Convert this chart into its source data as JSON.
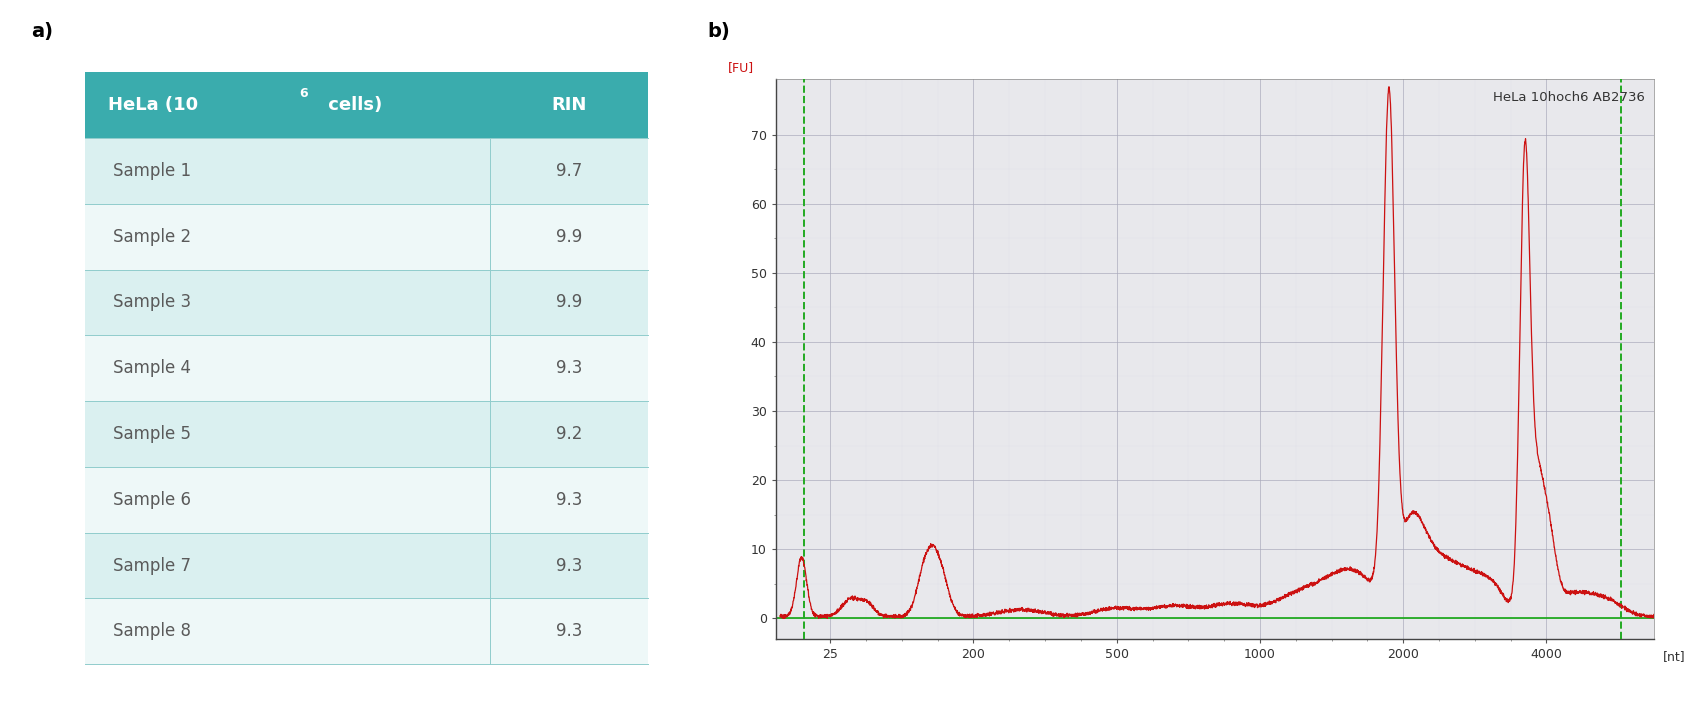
{
  "table_header_col1": "HeLa (10",
  "table_header_sup": "6",
  "table_header_col1b": " cells)",
  "table_header_col2": "RIN",
  "table_rows": [
    [
      "Sample 1",
      "9.7"
    ],
    [
      "Sample 2",
      "9.9"
    ],
    [
      "Sample 3",
      "9.9"
    ],
    [
      "Sample 4",
      "9.3"
    ],
    [
      "Sample 5",
      "9.2"
    ],
    [
      "Sample 6",
      "9.3"
    ],
    [
      "Sample 7",
      "9.3"
    ],
    [
      "Sample 8",
      "9.3"
    ]
  ],
  "header_bg": "#3aacad",
  "header_text_color": "#ffffff",
  "row_bg_light": "#daf0f0",
  "row_bg_lighter": "#eef8f8",
  "row_text_color": "#5a5a5a",
  "divider_color": "#90cccc",
  "panel_a_label": "a)",
  "panel_b_label": "b)",
  "chart_title": "HeLa 10hoch6 AB2736",
  "chart_ylabel": "[FU]",
  "chart_xlabel": "[nt]",
  "chart_yticks": [
    0,
    10,
    20,
    30,
    40,
    50,
    60,
    70
  ],
  "chart_xtick_labels": [
    "25",
    "200",
    "500",
    "1000",
    "2000",
    "4000"
  ],
  "chart_xtick_pos": [
    0,
    1,
    2,
    3,
    4,
    5
  ],
  "chart_bg": "#e8e8ec",
  "grid_color": "#aaaabb",
  "grid_color_minor": "#ccccdd",
  "vline_color": "#22aa22",
  "line_color": "#cc1111",
  "baseline_color": "#22aa22",
  "chart_ylim": [
    -3,
    78
  ],
  "col_split": 0.72
}
